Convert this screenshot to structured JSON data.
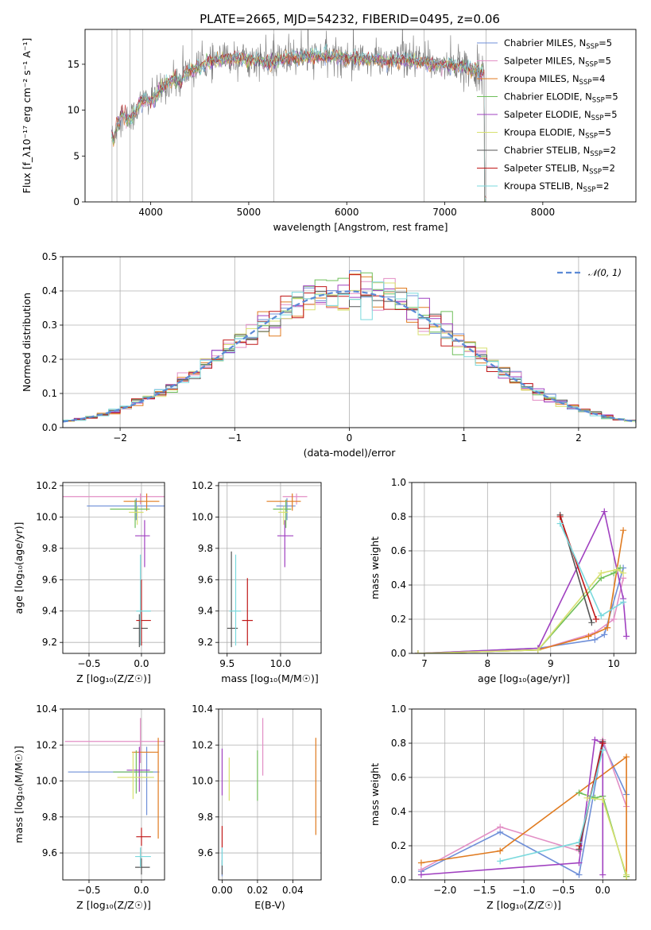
{
  "title": "PLATE=2665, MJD=54232, FIBERID=0495, z=0.06",
  "colors": [
    "#6f8fd8",
    "#e28fc5",
    "#e07b20",
    "#6fbf5a",
    "#a040c0",
    "#d8e070",
    "#555555",
    "#c01818",
    "#7ad9dd"
  ],
  "models": [
    {
      "name": "Chabrier MILES, N",
      "sub": "SSP",
      "n": "=5",
      "color": "#6f8fd8"
    },
    {
      "name": "Salpeter MILES, N",
      "sub": "SSP",
      "n": "=5",
      "color": "#e28fc5"
    },
    {
      "name": "Kroupa MILES, N",
      "sub": "SSP",
      "n": "=4",
      "color": "#e07b20"
    },
    {
      "name": "Chabrier ELODIE, N",
      "sub": "SSP",
      "n": "=5",
      "color": "#6fbf5a"
    },
    {
      "name": "Salpeter ELODIE, N",
      "sub": "SSP",
      "n": "=5",
      "color": "#a040c0"
    },
    {
      "name": "Kroupa ELODIE, N",
      "sub": "SSP",
      "n": "=5",
      "color": "#d8e070"
    },
    {
      "name": "Chabrier STELIB, N",
      "sub": "SSP",
      "n": "=2",
      "color": "#555555"
    },
    {
      "name": "Salpeter STELIB, N",
      "sub": "SSP",
      "n": "=2",
      "color": "#c01818"
    },
    {
      "name": "Kroupa STELIB, N",
      "sub": "SSP",
      "n": "=2",
      "color": "#7ad9dd"
    }
  ],
  "chart_data": [
    {
      "id": "spectrum",
      "type": "line",
      "title": "PLATE=2665, MJD=54232, FIBERID=0495, z=0.06",
      "xlabel": "wavelength [Angstrom, rest frame]",
      "ylabel": "Flux [f_λ10⁻¹⁷ erg cm⁻² s⁻¹ A⁻¹]",
      "xlim": [
        3330,
        8950
      ],
      "ylim": [
        0,
        18.8
      ],
      "xticks": [
        4000,
        5000,
        6000,
        7000,
        8000
      ],
      "yticks": [
        0,
        5,
        10,
        15
      ],
      "continuum": {
        "x": [
          3600,
          3620,
          3650,
          3700,
          3750,
          3800,
          3850,
          3900,
          3950,
          4000,
          4050,
          4100,
          4150,
          4200,
          4250,
          4300,
          4350,
          4400,
          4450,
          4500,
          4600,
          4700,
          4800,
          4900,
          5000,
          5100,
          5200,
          5300,
          5400,
          5500,
          5600,
          5700,
          5800,
          5900,
          6000,
          6100,
          6200,
          6300,
          6400,
          6500,
          6600,
          6700,
          6800,
          6900,
          7000,
          7100,
          7200,
          7300,
          7400
        ],
        "y": [
          7.2,
          6.8,
          8.2,
          9.5,
          9.0,
          9.0,
          10.0,
          10.8,
          11.2,
          11.0,
          11.5,
          12.3,
          12.8,
          13.0,
          13.3,
          13.0,
          14.0,
          14.2,
          14.5,
          14.8,
          15.2,
          15.4,
          15.6,
          15.7,
          15.6,
          15.5,
          15.0,
          15.4,
          15.6,
          15.7,
          15.8,
          15.9,
          15.9,
          15.8,
          15.7,
          15.7,
          15.5,
          15.5,
          15.4,
          15.4,
          15.4,
          15.3,
          15.2,
          15.0,
          14.9,
          14.8,
          14.6,
          14.4,
          14.0
        ]
      },
      "legend": "top-right"
    },
    {
      "id": "residuals",
      "type": "histogram",
      "xlabel": "(data-model)/error",
      "ylabel": "Normed distribution",
      "xlim": [
        -2.5,
        2.5
      ],
      "ylim": [
        0,
        0.5
      ],
      "xticks": [
        -2,
        -1,
        0,
        1,
        2
      ],
      "yticks": [
        0.0,
        0.1,
        0.2,
        0.3,
        0.4,
        0.5
      ],
      "reference": "𝒩(0, 1)",
      "legend": "top-right"
    },
    {
      "id": "age_vs_Z",
      "type": "errorbar",
      "xlabel": "Z [log₁₀(Z/Z☉)]",
      "ylabel": "age  [log₁₀(age/yr)]",
      "xlim": [
        -0.75,
        0.22
      ],
      "ylim": [
        9.13,
        10.22
      ],
      "xticks": [
        -0.5,
        0.0
      ],
      "yticks": [
        9.2,
        9.4,
        9.6,
        9.8,
        10.0,
        10.2
      ],
      "points": [
        {
          "x": -0.05,
          "xerr": [
            0.47,
            0.28
          ],
          "y": 10.07,
          "yerr": [
            0.09,
            0.05
          ],
          "color": "#6f8fd8"
        },
        {
          "x": -0.01,
          "xerr": [
            0.74,
            0.25
          ],
          "y": 10.13,
          "yerr": [
            0.05,
            0.02
          ],
          "color": "#e28fc5"
        },
        {
          "x": 0.05,
          "xerr": [
            0.22,
            0.12
          ],
          "y": 10.1,
          "yerr": [
            0.06,
            0.05
          ],
          "color": "#e07b20"
        },
        {
          "x": -0.06,
          "xerr": [
            0.24,
            0.14
          ],
          "y": 10.05,
          "yerr": [
            0.12,
            0.06
          ],
          "color": "#6fbf5a"
        },
        {
          "x": 0.03,
          "xerr": [
            0.09,
            0.05
          ],
          "y": 9.88,
          "yerr": [
            0.2,
            0.1
          ],
          "color": "#a040c0"
        },
        {
          "x": -0.04,
          "xerr": [
            0.08,
            0.06
          ],
          "y": 10.03,
          "yerr": [
            0.08,
            0.04
          ],
          "color": "#d8e070"
        },
        {
          "x": -0.02,
          "xerr": [
            0.06,
            0.08
          ],
          "y": 9.29,
          "yerr": [
            0.12,
            0.09
          ],
          "color": "#555555"
        },
        {
          "x": 0.0,
          "xerr": [
            0.05,
            0.09
          ],
          "y": 9.34,
          "yerr": [
            0.16,
            0.26
          ],
          "color": "#c01818"
        },
        {
          "x": -0.01,
          "xerr": [
            0.04,
            0.1
          ],
          "y": 9.4,
          "yerr": [
            0.22,
            0.36
          ],
          "color": "#7ad9dd"
        }
      ]
    },
    {
      "id": "age_vs_mass",
      "type": "errorbar",
      "xlabel": "mass [log₁₀(M/M☉)]",
      "ylabel": "",
      "xlim": [
        9.42,
        10.38
      ],
      "ylim": [
        9.13,
        10.22
      ],
      "xticks": [
        9.5,
        10.0
      ],
      "yticks": [
        9.2,
        9.4,
        9.6,
        9.8,
        10.0,
        10.2
      ],
      "points": [
        {
          "x": 10.06,
          "xerr": [
            0.1,
            0.08
          ],
          "y": 10.07,
          "yerr": [
            0.09,
            0.05
          ],
          "color": "#6f8fd8"
        },
        {
          "x": 10.15,
          "xerr": [
            0.13,
            0.1
          ],
          "y": 10.13,
          "yerr": [
            0.05,
            0.02
          ],
          "color": "#e28fc5"
        },
        {
          "x": 10.11,
          "xerr": [
            0.24,
            0.08
          ],
          "y": 10.1,
          "yerr": [
            0.06,
            0.05
          ],
          "color": "#e07b20"
        },
        {
          "x": 10.05,
          "xerr": [
            0.12,
            0.05
          ],
          "y": 10.05,
          "yerr": [
            0.12,
            0.06
          ],
          "color": "#6fbf5a"
        },
        {
          "x": 10.04,
          "xerr": [
            0.07,
            0.08
          ],
          "y": 9.88,
          "yerr": [
            0.2,
            0.1
          ],
          "color": "#a040c0"
        },
        {
          "x": 10.03,
          "xerr": [
            0.05,
            0.04
          ],
          "y": 10.03,
          "yerr": [
            0.08,
            0.04
          ],
          "color": "#d8e070"
        },
        {
          "x": 9.54,
          "xerr": [
            0.04,
            0.06
          ],
          "y": 9.29,
          "yerr": [
            0.12,
            0.49
          ],
          "color": "#555555"
        },
        {
          "x": 9.69,
          "xerr": [
            0.05,
            0.05
          ],
          "y": 9.34,
          "yerr": [
            0.16,
            0.27
          ],
          "color": "#c01818"
        },
        {
          "x": 9.58,
          "xerr": [
            0.06,
            0.05
          ],
          "y": 9.4,
          "yerr": [
            0.22,
            0.36
          ],
          "color": "#7ad9dd"
        }
      ]
    },
    {
      "id": "weight_vs_age",
      "type": "line",
      "xlabel": "age  [log₁₀(age/yr)]",
      "ylabel": "mass weight",
      "xlim": [
        6.8,
        10.35
      ],
      "ylim": [
        0,
        1.0
      ],
      "xticks": [
        7,
        8,
        9,
        10
      ],
      "yticks": [
        0.0,
        0.2,
        0.4,
        0.6,
        0.8,
        1.0
      ],
      "series": [
        {
          "color": "#6f8fd8",
          "x": [
            6.9,
            8.8,
            9.7,
            9.85,
            10.15
          ],
          "y": [
            0.0,
            0.03,
            0.08,
            0.11,
            0.5
          ]
        },
        {
          "color": "#e28fc5",
          "x": [
            6.9,
            8.8,
            9.7,
            10.0,
            10.15
          ],
          "y": [
            0.0,
            0.02,
            0.12,
            0.2,
            0.44
          ]
        },
        {
          "color": "#e07b20",
          "x": [
            6.9,
            8.8,
            9.6,
            9.9,
            10.15
          ],
          "y": [
            0.0,
            0.02,
            0.1,
            0.15,
            0.72
          ]
        },
        {
          "color": "#6fbf5a",
          "x": [
            6.9,
            8.8,
            9.8,
            10.0,
            10.1
          ],
          "y": [
            0.0,
            0.02,
            0.44,
            0.47,
            0.5
          ]
        },
        {
          "color": "#a040c0",
          "x": [
            6.9,
            8.8,
            9.85,
            10.15,
            10.2
          ],
          "y": [
            0.0,
            0.03,
            0.83,
            0.32,
            0.1
          ]
        },
        {
          "color": "#d8e070",
          "x": [
            6.9,
            8.8,
            9.8,
            10.05,
            10.15
          ],
          "y": [
            0.0,
            0.02,
            0.47,
            0.49,
            0.47
          ]
        },
        {
          "color": "#555555",
          "x": [
            9.15,
            9.65
          ],
          "y": [
            0.81,
            0.18
          ]
        },
        {
          "color": "#c01818",
          "x": [
            9.15,
            9.72
          ],
          "y": [
            0.8,
            0.2
          ]
        },
        {
          "color": "#7ad9dd",
          "x": [
            9.15,
            9.8,
            10.15
          ],
          "y": [
            0.76,
            0.22,
            0.3
          ]
        }
      ]
    },
    {
      "id": "mass_vs_Z",
      "type": "errorbar",
      "xlabel": "Z [log₁₀(Z/Z☉)]",
      "ylabel": "mass [log₁₀(M/M☉)]",
      "xlim": [
        -0.75,
        0.22
      ],
      "ylim": [
        9.45,
        10.4
      ],
      "xticks": [
        -0.5,
        0.0
      ],
      "yticks": [
        9.6,
        9.8,
        10.0,
        10.2,
        10.4
      ],
      "points": [
        {
          "x": 0.05,
          "xerr": [
            0.75,
            0.12
          ],
          "y": 10.05,
          "yerr": [
            0.24,
            0.14
          ],
          "color": "#6f8fd8"
        },
        {
          "x": -0.01,
          "xerr": [
            0.72,
            0.25
          ],
          "y": 10.22,
          "yerr": [
            0.12,
            0.13
          ],
          "color": "#e28fc5"
        },
        {
          "x": 0.16,
          "xerr": [
            0.25,
            0.0
          ],
          "y": 10.16,
          "yerr": [
            0.48,
            0.08
          ],
          "color": "#e07b20"
        },
        {
          "x": -0.05,
          "xerr": [
            0.22,
            0.16
          ],
          "y": 10.05,
          "yerr": [
            0.12,
            0.12
          ],
          "color": "#6fbf5a"
        },
        {
          "x": -0.02,
          "xerr": [
            0.12,
            0.1
          ],
          "y": 10.06,
          "yerr": [
            0.12,
            0.13
          ],
          "color": "#a040c0"
        },
        {
          "x": -0.08,
          "xerr": [
            0.15,
            0.2
          ],
          "y": 10.02,
          "yerr": [
            0.12,
            0.14
          ],
          "color": "#d8e070"
        },
        {
          "x": 0.0,
          "xerr": [
            0.06,
            0.08
          ],
          "y": 9.52,
          "yerr": [
            0.04,
            0.05
          ],
          "color": "#555555"
        },
        {
          "x": 0.0,
          "xerr": [
            0.05,
            0.09
          ],
          "y": 9.69,
          "yerr": [
            0.05,
            0.05
          ],
          "color": "#c01818"
        },
        {
          "x": -0.01,
          "xerr": [
            0.05,
            0.1
          ],
          "y": 9.58,
          "yerr": [
            0.06,
            0.05
          ],
          "color": "#7ad9dd"
        }
      ]
    },
    {
      "id": "mass_vs_EBV",
      "type": "errorbar",
      "xlabel": "E(B-V)",
      "ylabel": "",
      "xlim": [
        -0.002,
        0.056
      ],
      "ylim": [
        9.45,
        10.4
      ],
      "xticks": [
        0.0,
        0.02,
        0.04
      ],
      "yticks": [
        9.6,
        9.8,
        10.0,
        10.2,
        10.4
      ],
      "points": [
        {
          "x": 0.0,
          "y": 9.55,
          "yerr": [
            0.08,
            0.08
          ],
          "color": "#6f8fd8"
        },
        {
          "x": 0.023,
          "y": 10.19,
          "yerr": [
            0.16,
            0.16
          ],
          "color": "#e28fc5"
        },
        {
          "x": 0.053,
          "y": 9.97,
          "yerr": [
            0.27,
            0.27
          ],
          "color": "#e07b20"
        },
        {
          "x": 0.02,
          "y": 10.03,
          "yerr": [
            0.14,
            0.14
          ],
          "color": "#6fbf5a"
        },
        {
          "x": 0.0,
          "y": 10.05,
          "yerr": [
            0.13,
            0.13
          ],
          "color": "#a040c0"
        },
        {
          "x": 0.004,
          "y": 10.01,
          "yerr": [
            0.12,
            0.12
          ],
          "color": "#d8e070"
        },
        {
          "x": 0.0,
          "y": 9.52,
          "yerr": [
            0.04,
            0.04
          ],
          "color": "#555555"
        },
        {
          "x": 0.0,
          "y": 9.69,
          "yerr": [
            0.06,
            0.06
          ],
          "color": "#c01818"
        },
        {
          "x": 0.0,
          "y": 9.58,
          "yerr": [
            0.05,
            0.05
          ],
          "color": "#7ad9dd"
        }
      ]
    },
    {
      "id": "weight_vs_Z",
      "type": "line",
      "xlabel": "Z [log₁₀(Z/Z☉)]",
      "ylabel": "mass weight",
      "xlim": [
        -2.42,
        0.42
      ],
      "ylim": [
        0,
        1.0
      ],
      "xticks": [
        -2.0,
        -1.5,
        -1.0,
        -0.5,
        0.0
      ],
      "yticks": [
        0.0,
        0.2,
        0.4,
        0.6,
        0.8,
        1.0
      ],
      "series": [
        {
          "color": "#6f8fd8",
          "x": [
            -2.3,
            -1.3,
            -0.3,
            0.0,
            0.3
          ],
          "y": [
            0.05,
            0.28,
            0.03,
            0.8,
            0.5
          ]
        },
        {
          "color": "#e28fc5",
          "x": [
            -2.3,
            -1.3,
            -0.3,
            0.0,
            0.3
          ],
          "y": [
            0.06,
            0.31,
            0.17,
            0.82,
            0.43
          ]
        },
        {
          "color": "#e07b20",
          "x": [
            -2.3,
            -1.3,
            0.3,
            0.3
          ],
          "y": [
            0.1,
            0.17,
            0.72,
            0.02
          ]
        },
        {
          "color": "#6fbf5a",
          "x": [
            -0.3,
            -0.1,
            0.0,
            0.3
          ],
          "y": [
            0.51,
            0.48,
            0.49,
            0.02
          ]
        },
        {
          "color": "#a040c0",
          "x": [
            -2.3,
            -0.3,
            -0.1,
            0.0,
            0.0
          ],
          "y": [
            0.03,
            0.1,
            0.82,
            0.8,
            0.03
          ]
        },
        {
          "color": "#d8e070",
          "x": [
            -0.2,
            0.0,
            0.3,
            0.3
          ],
          "y": [
            0.48,
            0.47,
            0.03,
            0.0
          ]
        },
        {
          "color": "#555555",
          "x": [
            -0.3,
            0.0
          ],
          "y": [
            0.18,
            0.81
          ]
        },
        {
          "color": "#c01818",
          "x": [
            -0.3,
            0.0
          ],
          "y": [
            0.2,
            0.8
          ]
        },
        {
          "color": "#7ad9dd",
          "x": [
            -1.3,
            -0.3,
            0.0
          ],
          "y": [
            0.11,
            0.22,
            0.76
          ]
        }
      ]
    }
  ]
}
